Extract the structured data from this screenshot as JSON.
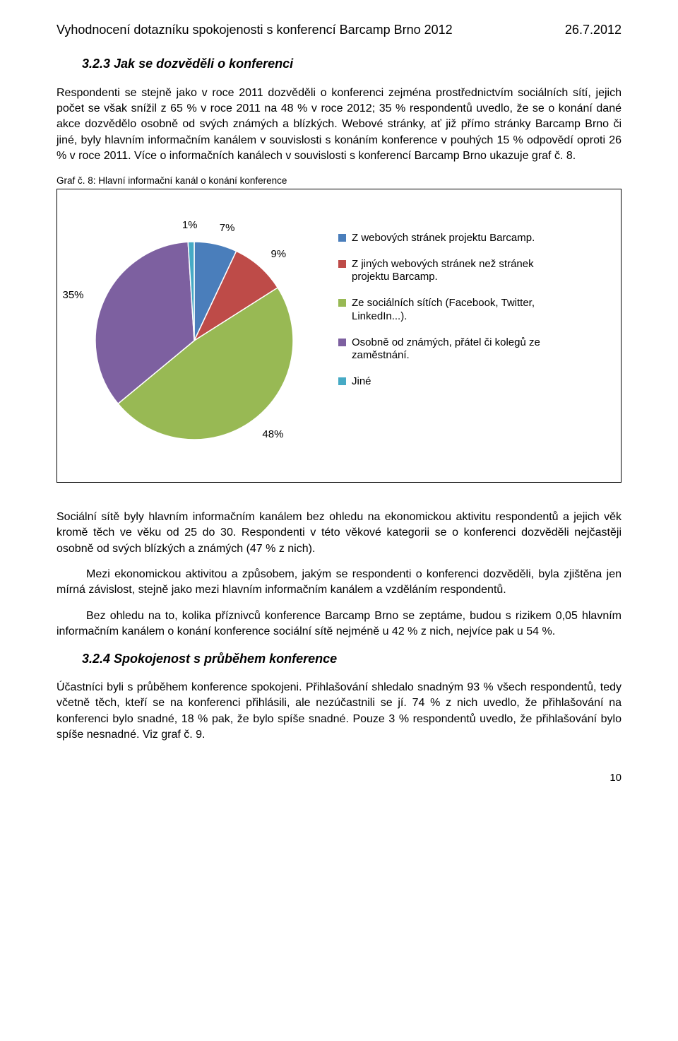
{
  "header": {
    "title": "Vyhodnocení dotazníku spokojenosti s konferencí Barcamp Brno 2012",
    "date": "26.7.2012"
  },
  "section1": {
    "number_title": "3.2.3  Jak se dozvěděli o konferenci",
    "p1": "Respondenti se stejně jako v roce 2011 dozvěděli o konferenci zejména prostřednictvím sociálních sítí, jejich počet se však snížil z 65 % v roce 2011 na 48 % v roce 2012; 35 % respondentů uvedlo, že se o konání dané akce dozvědělo osobně od svých známých a blízkých. Webové stránky, ať již přímo stránky Barcamp Brno či jiné, byly hlavním informačním kanálem v souvislosti s konáním konference v pouhých 15 % odpovědí oproti 26 % v roce 2011. Více o informačních kanálech v souvislosti s konferencí Barcamp Brno ukazuje graf č. 8.",
    "caption": "Graf č. 8: Hlavní informační kanál o konání konference"
  },
  "chart": {
    "type": "pie",
    "background_color": "#ffffff",
    "border_color": "#000000",
    "slice_border_color": "#ffffff",
    "slice_border_width": 1.5,
    "label_fontsize": 15,
    "slices": [
      {
        "label": "Z webových stránek projektu Barcamp.",
        "value": 7,
        "pct_text": "7%",
        "color": "#4a7ebb"
      },
      {
        "label": "Z jiných webových stránek než stránek projektu Barcamp.",
        "value": 9,
        "pct_text": "9%",
        "color": "#be4b48"
      },
      {
        "label": "Ze sociálních sítích (Facebook, Twitter, LinkedIn...).",
        "value": 48,
        "pct_text": "48%",
        "color": "#98b954"
      },
      {
        "label": "Osobně od známých, přátel či kolegů ze zaměstnání.",
        "value": 35,
        "pct_text": "35%",
        "color": "#7d60a0"
      },
      {
        "label": "Jiné",
        "value": 1,
        "pct_text": "1%",
        "color": "#46aac5"
      }
    ]
  },
  "body": {
    "p2": "Sociální sítě byly hlavním informačním kanálem bez ohledu na ekonomickou aktivitu respondentů a jejich věk kromě těch ve věku od 25 do 30. Respondenti v této věkové kategorii se o konferenci dozvěděli nejčastěji osobně od svých blízkých a známých (47 % z nich).",
    "p3": "Mezi ekonomickou aktivitou a způsobem, jakým se respondenti o konferenci dozvěděli, byla zjištěna jen mírná závislost, stejně jako mezi hlavním informačním kanálem a vzděláním respondentů.",
    "p4": "Bez ohledu na to, kolika příznivců konference Barcamp Brno se zeptáme, budou s rizikem 0,05 hlavním informačním kanálem o konání konference sociální sítě nejméně u 42 % z nich, nejvíce pak u 54 %."
  },
  "section2": {
    "number_title": "3.2.4  Spokojenost s průběhem konference",
    "p5": "Účastníci byli s průběhem konference spokojeni. Přihlašování shledalo snadným 93 % všech respondentů, tedy včetně těch, kteří se na konferenci přihlásili, ale nezúčastnili se jí. 74 % z nich uvedlo, že přihlašování na konferenci bylo snadné, 18 % pak, že bylo spíše snadné. Pouze 3 % respondentů uvedlo, že přihlašování bylo spíše nesnadné. Viz graf č. 9."
  },
  "page_number": "10"
}
